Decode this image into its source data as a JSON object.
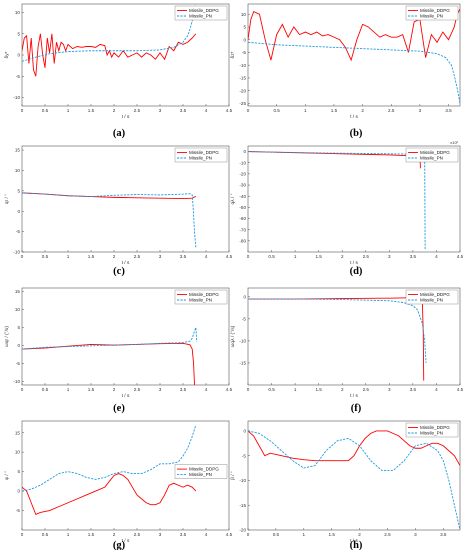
{
  "chart_data": [
    {
      "type": "line",
      "panel": "(a)",
      "xlabel": "t / s",
      "ylabel": "δy*",
      "xlim": [
        0,
        4.5
      ],
      "ylim": [
        -12,
        12
      ],
      "xticks": [
        0,
        0.5,
        1,
        1.5,
        2,
        2.5,
        3,
        3.5,
        4,
        4.5
      ],
      "yticks": [
        -10,
        -5,
        0,
        5,
        10
      ],
      "legend_position": "top-right",
      "series": [
        {
          "name": "Missile_DDPG",
          "color": "#ff0000",
          "dash": "solid",
          "x": [
            0,
            0.05,
            0.1,
            0.15,
            0.2,
            0.25,
            0.3,
            0.35,
            0.4,
            0.45,
            0.5,
            0.55,
            0.6,
            0.65,
            0.7,
            0.75,
            0.8,
            0.85,
            0.9,
            0.95,
            1.0,
            1.1,
            1.2,
            1.3,
            1.4,
            1.5,
            1.6,
            1.7,
            1.8,
            1.85,
            1.9,
            1.95,
            2.0,
            2.1,
            2.2,
            2.3,
            2.4,
            2.5,
            2.6,
            2.7,
            2.8,
            2.9,
            3.0,
            3.1,
            3.2,
            3.3,
            3.4,
            3.5,
            3.6,
            3.7,
            3.78
          ],
          "y": [
            1,
            4,
            4.5,
            -2,
            4,
            -3.5,
            -5,
            2,
            5,
            0,
            -3,
            4,
            0.5,
            5,
            -2,
            3,
            1,
            3,
            2.5,
            1,
            2.5,
            1.5,
            2,
            1.8,
            2,
            2,
            1.8,
            2.5,
            2.2,
            0,
            1,
            -0.5,
            0.5,
            -0.5,
            1,
            -0.5,
            0,
            0.5,
            -0.5,
            0.5,
            0,
            -1,
            0.5,
            -1,
            2,
            1,
            3,
            2.5,
            3,
            4,
            5
          ]
        },
        {
          "name": "Missile_PN",
          "color": "#1e9be0",
          "dash": "dashed",
          "x": [
            0,
            0.3,
            0.6,
            1.0,
            1.5,
            2.0,
            2.5,
            3.0,
            3.3,
            3.5,
            3.6,
            3.65,
            3.7,
            3.75,
            3.78
          ],
          "y": [
            -1.5,
            -0.5,
            0.3,
            0.8,
            1,
            1,
            1,
            1.2,
            1.8,
            3,
            4.5,
            6,
            8,
            11,
            13
          ]
        }
      ]
    },
    {
      "type": "line",
      "panel": "(b)",
      "xlabel": "t / s",
      "ylabel": "δz*",
      "xlim": [
        0,
        3.7
      ],
      "ylim": [
        -26,
        14
      ],
      "xticks": [
        0,
        0.5,
        1,
        1.5,
        2,
        2.5,
        3,
        3.5
      ],
      "yticks": [
        -25,
        -20,
        -15,
        -10,
        -5,
        0,
        5,
        10
      ],
      "legend_position": "top-right",
      "series": [
        {
          "name": "Missile_DDPG",
          "color": "#ff0000",
          "dash": "solid",
          "x": [
            0,
            0.05,
            0.1,
            0.2,
            0.3,
            0.4,
            0.5,
            0.6,
            0.7,
            0.8,
            0.9,
            1.0,
            1.1,
            1.2,
            1.3,
            1.4,
            1.5,
            1.6,
            1.7,
            1.8,
            1.9,
            2.0,
            2.1,
            2.2,
            2.3,
            2.4,
            2.5,
            2.6,
            2.7,
            2.8,
            2.9,
            3.0,
            3.1,
            3.2,
            3.3,
            3.4,
            3.5,
            3.6,
            3.65,
            3.7
          ],
          "y": [
            0,
            8,
            11,
            10,
            0,
            -8,
            2,
            6,
            1,
            5,
            2,
            3,
            2,
            3,
            1.5,
            2,
            1,
            0,
            -3,
            -8,
            0,
            6,
            5,
            3,
            1,
            2,
            1,
            1,
            2,
            -5,
            7,
            8,
            -7,
            2,
            -1,
            3,
            0,
            5,
            10,
            12
          ]
        },
        {
          "name": "Missile_PN",
          "color": "#1e9be0",
          "dash": "dashed",
          "x": [
            0,
            0.5,
            1.0,
            1.5,
            2.0,
            2.5,
            3.0,
            3.3,
            3.45,
            3.55,
            3.6,
            3.65,
            3.7
          ],
          "y": [
            -1,
            -2,
            -2.5,
            -3,
            -3.5,
            -4,
            -4.5,
            -5.5,
            -7,
            -10,
            -14,
            -19,
            -25
          ]
        }
      ]
    },
    {
      "type": "line",
      "panel": "(c)",
      "xlabel": "t / s",
      "ylabel": "qr / °",
      "xlim": [
        0,
        4.5
      ],
      "ylim": [
        -10,
        16
      ],
      "xticks": [
        0,
        0.5,
        1,
        1.5,
        2,
        2.5,
        3,
        3.5,
        4,
        4.5
      ],
      "yticks": [
        -10,
        -5,
        0,
        5,
        10,
        15
      ],
      "legend_position": "top-right",
      "series": [
        {
          "name": "Missile_DDPG",
          "color": "#ff0000",
          "dash": "solid",
          "x": [
            0,
            0.5,
            1.0,
            1.5,
            2.0,
            2.5,
            3.0,
            3.5,
            3.7,
            3.75,
            3.78
          ],
          "y": [
            4.5,
            4.2,
            3.8,
            3.6,
            3.4,
            3.3,
            3.2,
            3.1,
            3.2,
            3.5,
            3.6
          ]
        },
        {
          "name": "Missile_PN",
          "color": "#1e9be0",
          "dash": "dashed",
          "x": [
            0,
            0.5,
            1.0,
            1.5,
            2.0,
            2.5,
            3.0,
            3.5,
            3.65,
            3.7,
            3.72,
            3.75,
            3.78
          ],
          "y": [
            4.5,
            4.2,
            3.8,
            3.6,
            3.9,
            4.1,
            4.0,
            4.2,
            4.3,
            4.0,
            1,
            -5,
            -9
          ]
        }
      ]
    },
    {
      "type": "line",
      "panel": "(d)",
      "xlabel": "t / s",
      "ylabel": "qλ / °",
      "xlim": [
        0,
        4.5
      ],
      "ylim": [
        -90,
        5
      ],
      "xticks": [
        0,
        0.5,
        1,
        1.5,
        2,
        2.5,
        3,
        3.5,
        4,
        4.5
      ],
      "yticks": [
        -80,
        -70,
        -60,
        -50,
        -40,
        -30,
        -20,
        -10,
        0
      ],
      "legend_position": "top-right",
      "series": [
        {
          "name": "Missile_DDPG",
          "color": "#ff0000",
          "dash": "solid",
          "x": [
            0,
            1.0,
            2.0,
            3.0,
            3.6,
            3.65,
            3.66
          ],
          "y": [
            0,
            -1,
            -2,
            -3,
            -4,
            -4,
            -15
          ]
        },
        {
          "name": "Missile_PN",
          "color": "#1e9be0",
          "dash": "dashed",
          "x": [
            0,
            1.0,
            2.0,
            3.0,
            3.7,
            3.75,
            3.76
          ],
          "y": [
            0,
            -0.8,
            -1.5,
            -2,
            -2.5,
            -3,
            -88
          ]
        }
      ]
    },
    {
      "type": "line",
      "panel": "(e)",
      "xlabel": "t / s",
      "ylabel": "ωqr / (°/s)",
      "xlim": [
        0,
        4.5
      ],
      "ylim": [
        -11,
        16
      ],
      "xticks": [
        0,
        0.5,
        1,
        1.5,
        2,
        2.5,
        3,
        3.5,
        4,
        4.5
      ],
      "yticks": [
        -10,
        -5,
        0,
        5,
        10,
        15
      ],
      "legend_position": "top-right",
      "series": [
        {
          "name": "Missile_DDPG",
          "color": "#ff0000",
          "dash": "solid",
          "x": [
            0,
            0.5,
            1.0,
            1.5,
            2.0,
            2.5,
            3.0,
            3.5,
            3.65,
            3.7,
            3.73,
            3.75
          ],
          "y": [
            -1,
            -0.7,
            -0.2,
            0.3,
            0.1,
            0.3,
            0.5,
            0.6,
            0.2,
            -1,
            -5,
            -11
          ]
        },
        {
          "name": "Missile_PN",
          "color": "#1e9be0",
          "dash": "dashed",
          "x": [
            0,
            0.5,
            1.0,
            1.5,
            2.0,
            2.5,
            3.0,
            3.5,
            3.65,
            3.7,
            3.75,
            3.78,
            3.8
          ],
          "y": [
            -1,
            -0.5,
            -0.3,
            -0.1,
            0.1,
            0.3,
            0.6,
            0.8,
            1.2,
            2,
            4,
            5,
            1
          ]
        }
      ]
    },
    {
      "type": "line",
      "panel": "(f)",
      "xlabel": "t / s",
      "ylabel": "ωqλ / (°/s)",
      "xlim": [
        0,
        4.5
      ],
      "ylim": [
        -20,
        2
      ],
      "xticks": [
        0,
        0.5,
        1,
        1.5,
        2,
        2.5,
        3,
        3.5,
        4,
        4.5
      ],
      "yticks": [
        -15,
        -10,
        -5,
        0
      ],
      "legend_position": "top-right",
      "series": [
        {
          "name": "Missile_DDPG",
          "color": "#ff0000",
          "dash": "solid",
          "x": [
            0,
            1.0,
            2.0,
            3.0,
            3.5,
            3.65,
            3.7,
            3.72,
            3.73
          ],
          "y": [
            -0.5,
            -0.5,
            -0.4,
            -0.3,
            -0.2,
            -0.3,
            -1,
            -8,
            -19
          ]
        },
        {
          "name": "Missile_PN",
          "color": "#1e9be0",
          "dash": "dashed",
          "x": [
            0,
            1.0,
            2.0,
            3.0,
            3.3,
            3.5,
            3.6,
            3.7,
            3.75,
            3.78
          ],
          "y": [
            -0.5,
            -0.5,
            -0.6,
            -0.9,
            -1.3,
            -2,
            -3,
            -6,
            -10,
            -15
          ]
        }
      ]
    },
    {
      "type": "line",
      "panel": "(g)",
      "xlabel": "t / s",
      "ylabel": "φ / °",
      "xlim": [
        0,
        4.5
      ],
      "ylim": [
        -10,
        18
      ],
      "xticks": [
        0,
        0.5,
        1,
        1.5,
        2,
        2.5,
        3,
        3.5,
        4,
        4.5
      ],
      "yticks": [
        -5,
        0,
        5,
        10,
        15
      ],
      "legend_position": "center-right",
      "series": [
        {
          "name": "Missile_DDPG",
          "color": "#ff0000",
          "dash": "solid",
          "x": [
            0,
            0.1,
            0.2,
            0.3,
            0.4,
            0.6,
            0.8,
            1.0,
            1.2,
            1.4,
            1.6,
            1.8,
            1.9,
            2.0,
            2.1,
            2.2,
            2.3,
            2.4,
            2.5,
            2.6,
            2.7,
            2.8,
            2.9,
            3.0,
            3.1,
            3.2,
            3.3,
            3.4,
            3.5,
            3.6,
            3.7,
            3.78
          ],
          "y": [
            1,
            0,
            -3,
            -6,
            -5.5,
            -5,
            -4,
            -3,
            -2,
            -1,
            0,
            1,
            2.5,
            4,
            4.5,
            4,
            3,
            1,
            -1,
            -2,
            -3,
            -3.5,
            -3.5,
            -3,
            -1,
            1.5,
            2,
            1.5,
            1,
            1.5,
            1,
            0
          ]
        },
        {
          "name": "Missile_PN",
          "color": "#1e9be0",
          "dash": "dashed",
          "x": [
            0,
            0.2,
            0.4,
            0.6,
            0.8,
            1.0,
            1.2,
            1.4,
            1.6,
            1.8,
            2.0,
            2.2,
            2.4,
            2.6,
            2.8,
            3.0,
            3.2,
            3.4,
            3.5,
            3.6,
            3.7,
            3.78
          ],
          "y": [
            0,
            0.5,
            1.5,
            3,
            4.5,
            5,
            4.5,
            3.5,
            3,
            3.5,
            4.5,
            5,
            4.5,
            4.5,
            5.5,
            7,
            7,
            7.5,
            9,
            11,
            14,
            17
          ]
        }
      ]
    },
    {
      "type": "line",
      "panel": "(h)",
      "xlabel": "t / s",
      "ylabel": "β / °",
      "xlim": [
        0,
        3.8
      ],
      "ylim": [
        -20,
        2
      ],
      "xticks": [
        0,
        0.5,
        1,
        1.5,
        2,
        2.5,
        3,
        3.5
      ],
      "yticks": [
        -20,
        -15,
        -10,
        -5,
        0
      ],
      "legend_position": "top-right",
      "series": [
        {
          "name": "Missile_DDPG",
          "color": "#ff0000",
          "dash": "solid",
          "x": [
            0,
            0.1,
            0.2,
            0.3,
            0.4,
            0.6,
            0.8,
            1.0,
            1.2,
            1.4,
            1.6,
            1.8,
            1.9,
            2.0,
            2.1,
            2.2,
            2.3,
            2.4,
            2.5,
            2.6,
            2.7,
            2.8,
            2.9,
            3.0,
            3.1,
            3.2,
            3.3,
            3.4,
            3.5,
            3.6,
            3.7,
            3.8
          ],
          "y": [
            0,
            -1,
            -3,
            -5,
            -4.5,
            -5,
            -5.5,
            -5.8,
            -6,
            -6,
            -6,
            -6,
            -5,
            -3,
            -1.5,
            -0.5,
            0,
            0,
            0,
            -0.5,
            -1,
            -2,
            -3,
            -3.5,
            -3.5,
            -3,
            -2.5,
            -2.5,
            -3,
            -4,
            -5,
            -7
          ]
        },
        {
          "name": "Missile_PN",
          "color": "#1e9be0",
          "dash": "dashed",
          "x": [
            0,
            0.2,
            0.4,
            0.6,
            0.8,
            1.0,
            1.2,
            1.4,
            1.6,
            1.8,
            2.0,
            2.2,
            2.4,
            2.6,
            2.8,
            3.0,
            3.2,
            3.4,
            3.5,
            3.6,
            3.7,
            3.8
          ],
          "y": [
            0,
            -0.5,
            -2,
            -4,
            -6,
            -7.5,
            -7,
            -4,
            -2,
            -1.5,
            -3,
            -6,
            -8,
            -8,
            -6,
            -3,
            -2.5,
            -4,
            -6,
            -10,
            -15,
            -20
          ]
        }
      ]
    }
  ],
  "captions": [
    "(a)",
    "(b)",
    "(c)",
    "(d)",
    "(e)",
    "(f)",
    "(g)",
    "(h)"
  ],
  "corner_marks": {
    "d": "x10²"
  }
}
